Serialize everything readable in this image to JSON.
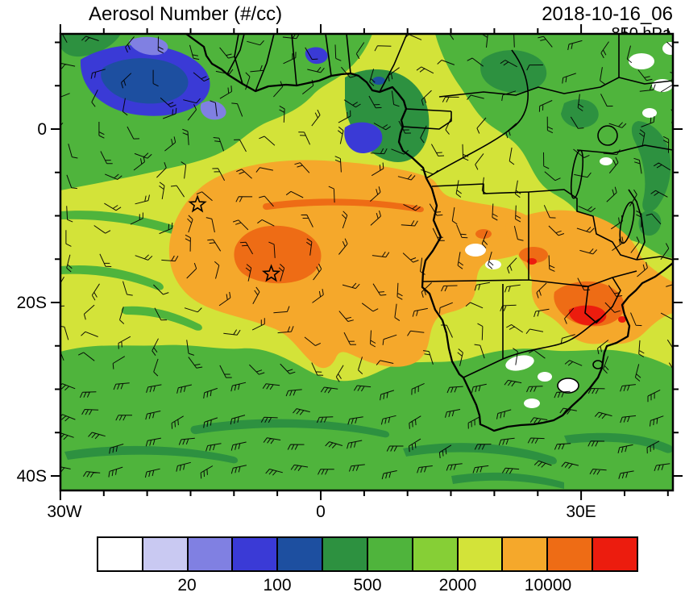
{
  "header": {
    "title": "Aerosol Number (#/cc)",
    "datetime": "2018-10-16_06",
    "level": "850 hPa"
  },
  "axes": {
    "y_tick_labels": [
      "0",
      "20S",
      "40S"
    ],
    "x_tick_labels": [
      "30W",
      "0",
      "30E"
    ]
  },
  "colorbar": {
    "colors": [
      "#ffffff",
      "#c9c9f2",
      "#8080e2",
      "#3a3ad6",
      "#1d4fa0",
      "#2d9140",
      "#4fb43c",
      "#86cf36",
      "#d3e339",
      "#f5a82b",
      "#ee6c15",
      "#ec1c0e"
    ],
    "labels": [
      "20",
      "100",
      "500",
      "2000",
      "10000"
    ],
    "label_boundary_indices": [
      2,
      4,
      6,
      8,
      10
    ]
  },
  "chart_data": {
    "type": "heatmap",
    "title": "Aerosol Number (#/cc)",
    "units": "#/cc",
    "time": "2018-10-16_06",
    "level": "850 hPa",
    "projection": "lat-lon map of Africa and the South Atlantic",
    "domain": {
      "lon_min": -30,
      "lon_max": 40,
      "lat_min": -41,
      "lat_max": 11
    },
    "x_ticks": [
      {
        "label": "30W",
        "lon": -30
      },
      {
        "label": "0",
        "lon": 0
      },
      {
        "label": "30E",
        "lon": 30
      }
    ],
    "y_ticks": [
      {
        "label": "0",
        "lat": 0
      },
      {
        "label": "20S",
        "lat": -20
      },
      {
        "label": "40S",
        "lat": -40
      }
    ],
    "colorbar_labels": [
      20,
      100,
      500,
      2000,
      10000
    ],
    "colorbar_boundaries_est": [
      10,
      20,
      50,
      100,
      200,
      500,
      1000,
      2000,
      5000,
      10000,
      20000
    ],
    "star_markers": [
      {
        "lon": -14.2,
        "lat": -8.7
      },
      {
        "lon": -5.7,
        "lat": -16.7
      }
    ],
    "overlays": [
      "wind barbs",
      "coastlines",
      "country borders",
      "lakes",
      "star markers"
    ],
    "features": [
      "Main biomass-burning plume 5000-10000 #/cc (orange) over SE Atlantic and Angola, ~18W-15E, 4S-26S",
      "Plume core 10000-20000 #/cc (dark orange) near 10W-0E, 11S-17S",
      "Second high region 5000-20000 #/cc over Zambia/Zimbabwe/Mozambique, 24E-35E, 10S-22S, with small >20000 #/cc (red) spots near 28E-33E, 15S-20S",
      "Background 2000-5000 #/cc (yellow-green) over tropical Atlantic and Sahel",
      "500-2000 #/cc (greens) over the Southern Ocean band, Gulf of Guinea coast and East Africa; 200-500 #/cc (dark green) streaks",
      "Clean air 20-200 #/cc (blues) near 28W-18W, 4N-9N; cleanest <10 #/cc (white) patches over southern Africa highlands and the NE corner",
      "Strong westerly wind barbs south of 28S; weaker variable flow over the tropical plume"
    ]
  }
}
